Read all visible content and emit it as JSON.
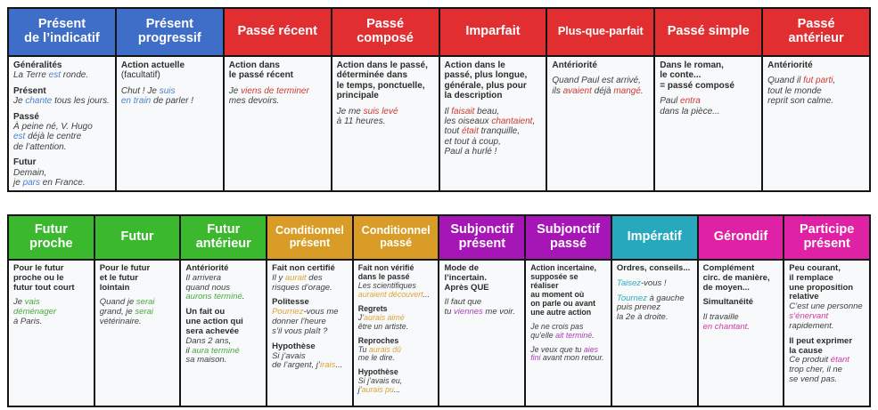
{
  "colors": {
    "cell_background": "#f7f9fa",
    "border": "#141414",
    "header_text": "#ffffff",
    "label_text": "#2c2c2c",
    "example_text": "#3e3e3e",
    "blue": "#3f6ec8",
    "red": "#e12f31",
    "green": "#3cb82f",
    "orange": "#d99c27",
    "purple": "#a616b6",
    "teal": "#27a8bd",
    "magenta": "#de21a5"
  },
  "tables": [
    {
      "name": "table-indicative-present-past-tenses",
      "columns": [
        {
          "id": "present-indicatif",
          "title": "Présent\nde l’indicatif",
          "color": "#3f6ec8",
          "accent": "#4d82cc",
          "blocks": [
            {
              "label": "Généralités",
              "example": [
                {
                  "t": "La Terre "
                },
                {
                  "t": "est",
                  "a": true
                },
                {
                  "t": " ronde."
                }
              ]
            },
            {
              "label": "Présent",
              "example": [
                {
                  "t": "Je "
                },
                {
                  "t": "chante",
                  "a": true
                },
                {
                  "t": " tous les jours."
                }
              ]
            },
            {
              "label": "Passé",
              "example": [
                {
                  "t": "À peine né, V. Hugo\n"
                },
                {
                  "t": "est",
                  "a": true
                },
                {
                  "t": " déjà le centre\nde l’attention."
                }
              ]
            },
            {
              "label": "Futur",
              "example": [
                {
                  "t": "Demain,\nje "
                },
                {
                  "t": "pars",
                  "a": true
                },
                {
                  "t": " en France."
                }
              ]
            }
          ]
        },
        {
          "id": "present-progressif",
          "title": "Présent\nprogressif",
          "color": "#3f6ec8",
          "accent": "#4d82cc",
          "blocks": [
            {
              "label": "Action actuelle",
              "note": "(facultatif)"
            },
            {
              "example": [
                {
                  "t": "Chut ! Je "
                },
                {
                  "t": "suis",
                  "a": true
                },
                {
                  "t": "\n"
                },
                {
                  "t": "en train",
                  "a": true
                },
                {
                  "t": " de parler !"
                }
              ]
            }
          ]
        },
        {
          "id": "passe-recent",
          "title": "Passé récent",
          "color": "#e12f31",
          "accent": "#cf3a34",
          "blocks": [
            {
              "label": "Action dans\nle passé récent"
            },
            {
              "example": [
                {
                  "t": "Je "
                },
                {
                  "t": "viens de terminer",
                  "a": true
                },
                {
                  "t": "\nmes devoirs."
                }
              ]
            }
          ]
        },
        {
          "id": "passe-compose",
          "title": "Passé\ncomposé",
          "color": "#e12f31",
          "accent": "#cf3a34",
          "blocks": [
            {
              "label": "Action dans le passé,\ndéterminée dans\nle temps, ponctuelle,\nprincipale"
            },
            {
              "example": [
                {
                  "t": "Je me "
                },
                {
                  "t": "suis levé",
                  "a": true
                },
                {
                  "t": "\nà 11 heures."
                }
              ]
            }
          ]
        },
        {
          "id": "imparfait",
          "title": "Imparfait",
          "color": "#e12f31",
          "accent": "#cf3a34",
          "blocks": [
            {
              "label": "Action dans le\npassé, plus longue,\ngénérale, plus pour\nla description"
            },
            {
              "example": [
                {
                  "t": "Il "
                },
                {
                  "t": "faisait",
                  "a": true
                },
                {
                  "t": " beau,\nles oiseaux "
                },
                {
                  "t": "chantaient",
                  "a": true
                },
                {
                  "t": ",\ntout "
                },
                {
                  "t": "était",
                  "a": true
                },
                {
                  "t": " tranquille,\net tout à coup,\nPaul a hurlé !"
                }
              ]
            }
          ]
        },
        {
          "id": "plus-que-parfait",
          "title": "Plus-que-parfait",
          "color": "#e12f31",
          "accent": "#cf3a34",
          "header_compact": true,
          "blocks": [
            {
              "label": "Antériorité"
            },
            {
              "example": [
                {
                  "t": "Quand Paul est arrivé,\nils "
                },
                {
                  "t": "avaient",
                  "a": true
                },
                {
                  "t": " déjà "
                },
                {
                  "t": "mangé",
                  "a": true
                },
                {
                  "t": "."
                }
              ]
            }
          ]
        },
        {
          "id": "passe-simple",
          "title": "Passé simple",
          "color": "#e12f31",
          "accent": "#cf3a34",
          "blocks": [
            {
              "label": "Dans le roman,\nle conte...\n= passé composé"
            },
            {
              "example": [
                {
                  "t": "Paul "
                },
                {
                  "t": "entra",
                  "a": true
                },
                {
                  "t": "\ndans la pièce..."
                }
              ]
            }
          ]
        },
        {
          "id": "passe-anterieur",
          "title": "Passé\nantérieur",
          "color": "#e12f31",
          "accent": "#cf3a34",
          "blocks": [
            {
              "label": "Antériorité"
            },
            {
              "example": [
                {
                  "t": "Quand il "
                },
                {
                  "t": "fut parti",
                  "a": true
                },
                {
                  "t": ",\ntout le monde\nreprit son calme."
                }
              ]
            }
          ]
        }
      ]
    },
    {
      "name": "table-future-conditional-other-moods",
      "columns": [
        {
          "id": "futur-proche",
          "title": "Futur\nproche",
          "color": "#3cb82f",
          "accent": "#49ab3f",
          "blocks": [
            {
              "label": "Pour le futur\nproche ou le\nfutur tout court"
            },
            {
              "example": [
                {
                  "t": "Je "
                },
                {
                  "t": "vais\ndéménager",
                  "a": true
                },
                {
                  "t": "\nà Paris."
                }
              ]
            }
          ]
        },
        {
          "id": "futur",
          "title": "Futur",
          "color": "#3cb82f",
          "accent": "#49ab3f",
          "blocks": [
            {
              "label": "Pour le futur\net le futur\nlointain"
            },
            {
              "example": [
                {
                  "t": "Quand je "
                },
                {
                  "t": "serai",
                  "a": true
                },
                {
                  "t": "\ngrand, je "
                },
                {
                  "t": "serai",
                  "a": true
                },
                {
                  "t": "\nvétérinaire."
                }
              ]
            }
          ]
        },
        {
          "id": "futur-anterieur",
          "title": "Futur\nantérieur",
          "color": "#3cb82f",
          "accent": "#49ab3f",
          "blocks": [
            {
              "label": "Antériorité",
              "example": [
                {
                  "t": "Il arrivera\nquand nous\n"
                },
                {
                  "t": "aurons terminé",
                  "a": true
                },
                {
                  "t": "."
                }
              ]
            },
            {
              "label": "Un fait ou\nune action qui\nsera achevée",
              "example": [
                {
                  "t": "Dans 2 ans,\nil "
                },
                {
                  "t": "aura terminé",
                  "a": true
                },
                {
                  "t": "\nsa maison."
                }
              ]
            }
          ]
        },
        {
          "id": "conditionnel-present",
          "title": "Conditionnel\nprésent",
          "color": "#d99c27",
          "accent": "#dfa438",
          "header_compact": true,
          "blocks": [
            {
              "label": "Fait non certifié",
              "example": [
                {
                  "t": "Il y "
                },
                {
                  "t": "aurait",
                  "a": true
                },
                {
                  "t": " des\nrisques d’orage."
                }
              ]
            },
            {
              "label": "Politesse",
              "example": [
                {
                  "t": "Pourriez",
                  "a": true
                },
                {
                  "t": "-vous me\ndonner l’heure\ns’il vous plaît ?"
                }
              ]
            },
            {
              "label": "Hypothèse",
              "example": [
                {
                  "t": "Si j’avais\nde l’argent, j’"
                },
                {
                  "t": "irais",
                  "a": true
                },
                {
                  "t": "..."
                }
              ]
            }
          ]
        },
        {
          "id": "conditionnel-passe",
          "title": "Conditionnel\npassé",
          "color": "#d99c27",
          "accent": "#dfa438",
          "header_compact": true,
          "compact": true,
          "blocks": [
            {
              "label": "Fait non vérifié\ndans le passé",
              "example": [
                {
                  "t": "Les scientifiques\n"
                },
                {
                  "t": "auraient découvert",
                  "a": true
                },
                {
                  "t": "..."
                }
              ]
            },
            {
              "label": "Regrets",
              "example": [
                {
                  "t": "J’"
                },
                {
                  "t": "aurais aimé",
                  "a": true
                },
                {
                  "t": "\nêtre un artiste."
                }
              ]
            },
            {
              "label": "Reproches",
              "example": [
                {
                  "t": "Tu "
                },
                {
                  "t": "aurais dû",
                  "a": true
                },
                {
                  "t": "\nme le dire."
                }
              ]
            },
            {
              "label": "Hypothèse",
              "example": [
                {
                  "t": "Si j’avais eu,\nj’"
                },
                {
                  "t": "aurais pu",
                  "a": true
                },
                {
                  "t": "..."
                }
              ]
            }
          ]
        },
        {
          "id": "subjonctif-present",
          "title": "Subjonctif\nprésent",
          "color": "#a616b6",
          "accent": "#aa3fba",
          "blocks": [
            {
              "label": "Mode de l’incertain.\nAprès QUE"
            },
            {
              "example": [
                {
                  "t": "Il faut que\ntu "
                },
                {
                  "t": "viennes",
                  "a": true
                },
                {
                  "t": " me voir."
                }
              ]
            }
          ]
        },
        {
          "id": "subjonctif-passe",
          "title": "Subjonctif\npassé",
          "color": "#a616b6",
          "accent": "#aa3fba",
          "compact": true,
          "blocks": [
            {
              "label": "Action incertaine,\nsupposée se réaliser\nau moment où\non parle ou avant\nune autre action"
            },
            {
              "example": [
                {
                  "t": "Je ne crois pas\nqu’elle "
                },
                {
                  "t": "ait terminé",
                  "a": true
                },
                {
                  "t": "."
                }
              ]
            },
            {
              "example": [
                {
                  "t": "Je veux que tu "
                },
                {
                  "t": "aies\nfini",
                  "a": true
                },
                {
                  "t": " avant mon retour."
                }
              ]
            }
          ]
        },
        {
          "id": "imperatif",
          "title": "Impératif",
          "color": "#27a8bd",
          "accent": "#2fa9bd",
          "blocks": [
            {
              "label": "Ordres, conseils..."
            },
            {
              "example": [
                {
                  "t": "Taisez",
                  "a": true
                },
                {
                  "t": "-vous !"
                }
              ]
            },
            {
              "example": [
                {
                  "t": "Tournez",
                  "a": true
                },
                {
                  "t": " à gauche\npuis prenez\nla 2e à droite."
                }
              ]
            }
          ]
        },
        {
          "id": "gerondif",
          "title": "Gérondif",
          "color": "#de21a5",
          "accent": "#d338a4",
          "blocks": [
            {
              "label": "Complément\ncirc. de manière,\nde moyen..."
            },
            {
              "label": "Simultanéité"
            },
            {
              "example": [
                {
                  "t": "Il travaille\n"
                },
                {
                  "t": "en chantant",
                  "a": true
                },
                {
                  "t": "."
                }
              ]
            }
          ]
        },
        {
          "id": "participe-present",
          "title": "Participe\nprésent",
          "color": "#de21a5",
          "accent": "#d338a4",
          "blocks": [
            {
              "label": "Peu courant,\nil remplace\nune proposition\nrelative",
              "example": [
                {
                  "t": "C’est une personne\n"
                },
                {
                  "t": "s’énervant",
                  "a": true
                },
                {
                  "t": "\nrapidement."
                }
              ]
            },
            {
              "label": "Il peut exprimer\nla cause",
              "example": [
                {
                  "t": "Ce produit "
                },
                {
                  "t": "étant",
                  "a": true
                },
                {
                  "t": "\ntrop cher, il ne\nse vend pas."
                }
              ]
            }
          ]
        }
      ]
    }
  ]
}
